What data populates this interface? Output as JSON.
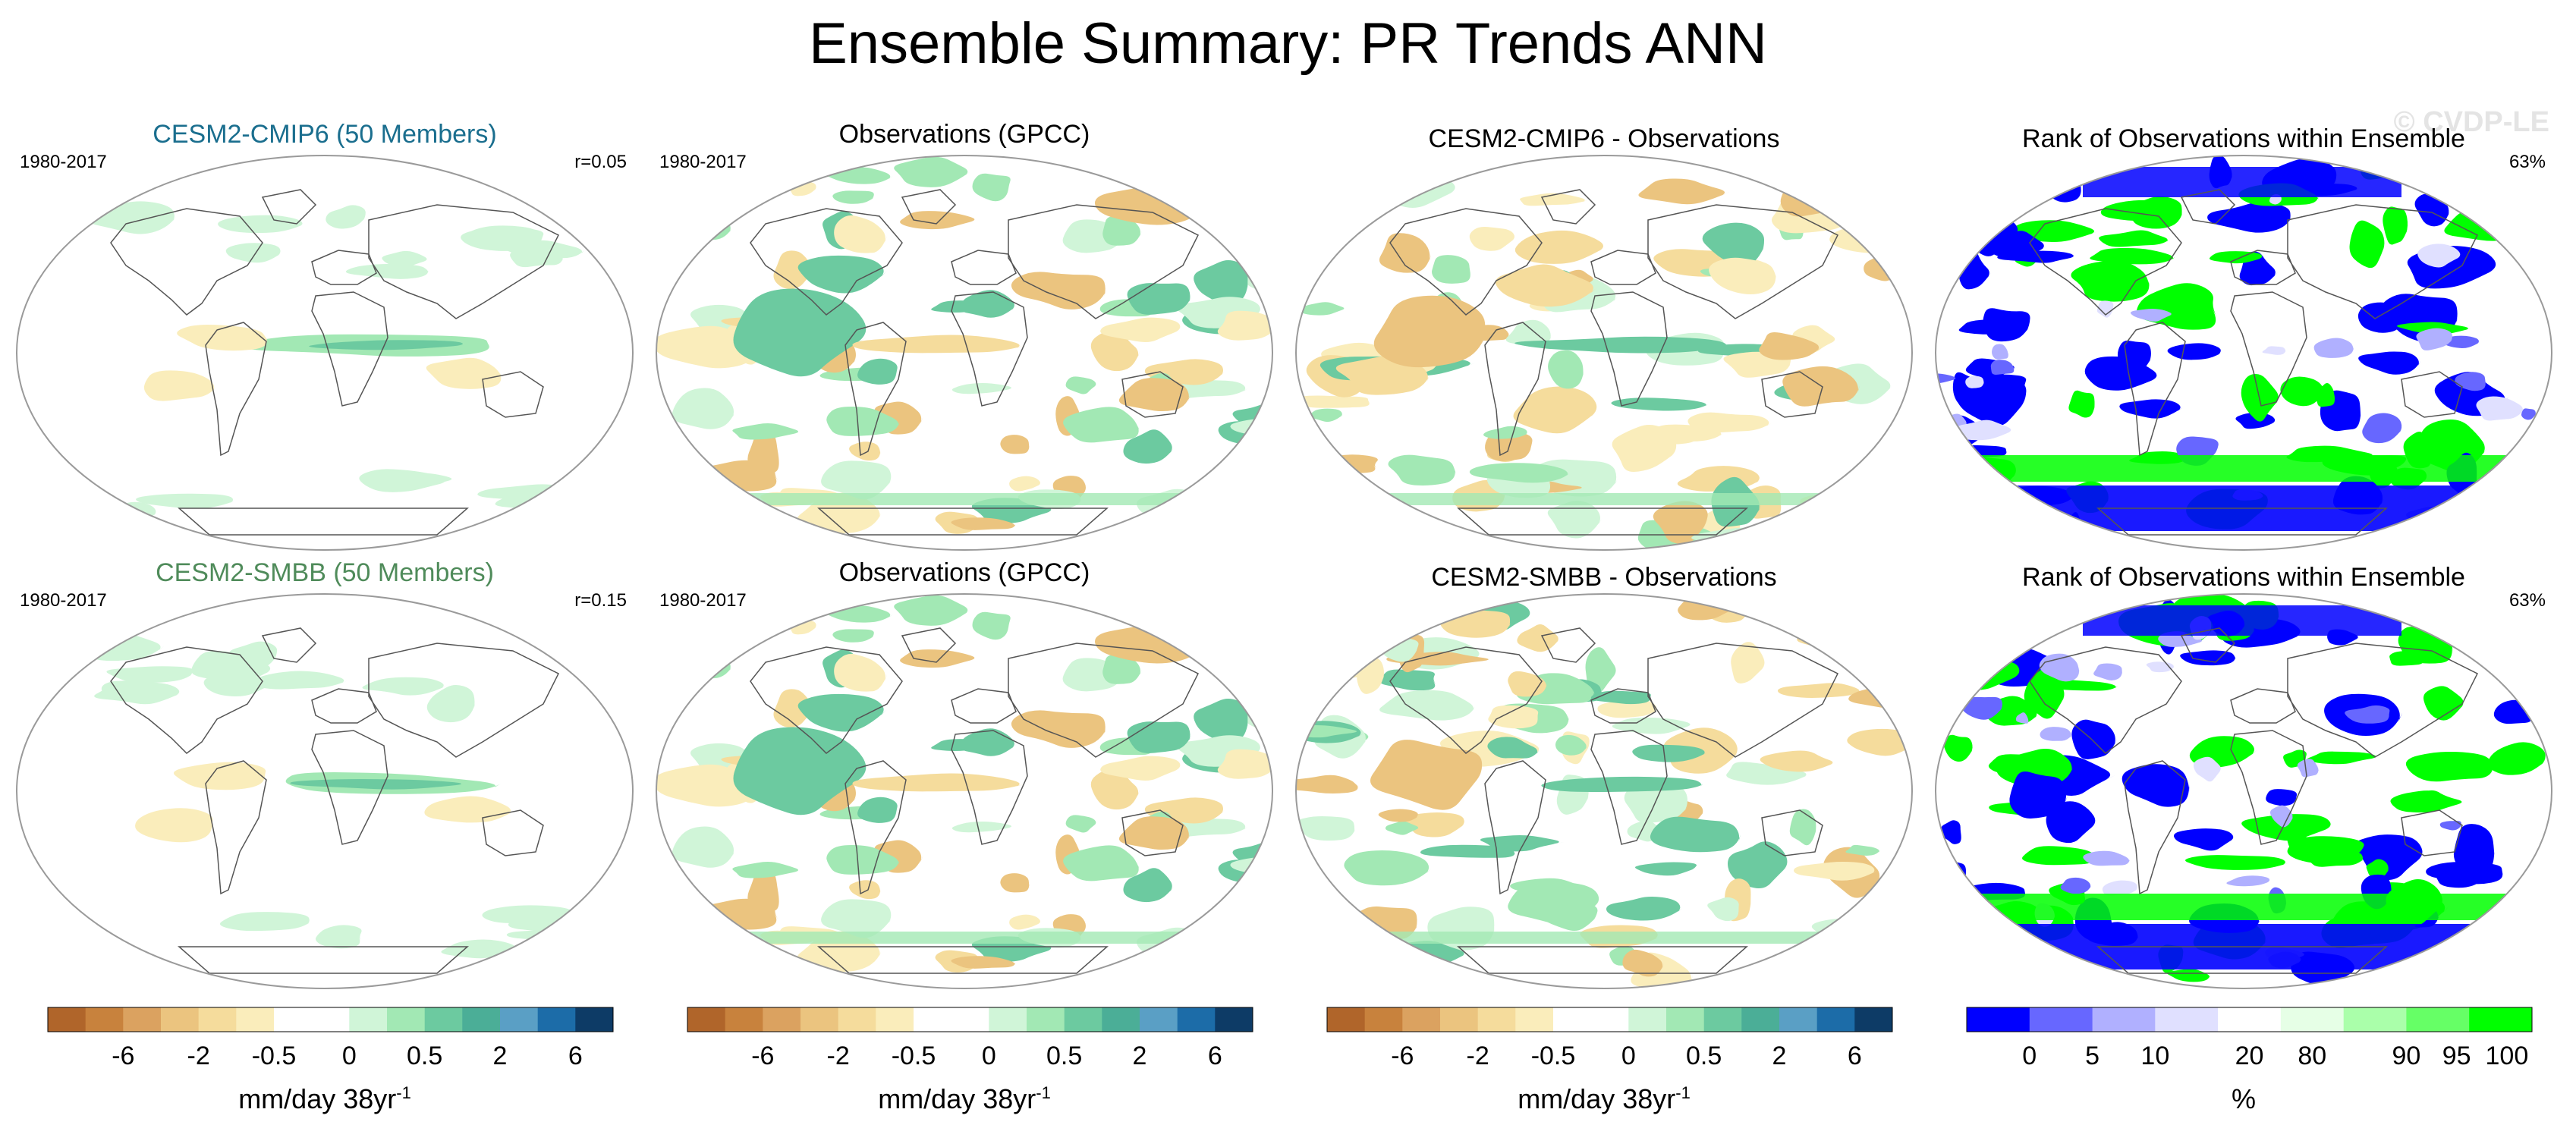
{
  "figure": {
    "title": "Ensemble Summary: PR Trends ANN",
    "watermark": "© CVDP-LE"
  },
  "colors": {
    "trend_scale": [
      "#b0652a",
      "#c8823d",
      "#dba260",
      "#ebc47f",
      "#f5dc9c",
      "#faedbb",
      "#ffffff",
      "#ffffff",
      "#d0f5d8",
      "#a2e8b4",
      "#6ccaa0",
      "#4bae97",
      "#5a9fc5",
      "#1c6ca8",
      "#0d3b66"
    ],
    "rank_scale": [
      "#0000ff",
      "#6767ff",
      "#b0b0ff",
      "#e0e0ff",
      "#ffffff",
      "#e6ffe6",
      "#aaffaa",
      "#66ff66",
      "#00ff00"
    ],
    "title_cmip6": "#1a6e8e",
    "title_smbb": "#4f8b5a",
    "coast": "#555555"
  },
  "chart_data": [
    {
      "type": "heatmap",
      "id": "row1-col1",
      "title": "CESM2-CMIP6 (50 Members)",
      "period": "1980-2017",
      "stat": "r=0.05",
      "projection": "Robinson",
      "variable": "PR trend",
      "units": "mm/day 38yr-1",
      "pattern": "ensemble-mean trend: wetting along equatorial Pacific and northern high latitudes, weak drying in subtropics"
    },
    {
      "type": "heatmap",
      "id": "row1-col2",
      "title": "Observations (GPCC)",
      "period": "1980-2017",
      "projection": "Robinson",
      "variable": "PR trend",
      "units": "mm/day 38yr-1",
      "pattern": "observed trend: wetting over Maritime Continent and western Pacific, drying over central/eastern Pacific"
    },
    {
      "type": "heatmap",
      "id": "row1-col3",
      "title": "CESM2-CMIP6 - Observations",
      "projection": "Robinson",
      "variable": "PR trend difference",
      "units": "mm/day 38yr-1",
      "pattern": "model minus observations: drying over Maritime Continent, wetting along central equatorial Pacific"
    },
    {
      "type": "heatmap",
      "id": "row1-col4",
      "title": "Rank of Observations within Ensemble",
      "stat": "63%",
      "projection": "Robinson",
      "variable": "rank",
      "units": "%",
      "pattern": "blue (low rank) and green (high rank) patches; bands near Southern Ocean"
    },
    {
      "type": "heatmap",
      "id": "row2-col1",
      "title": "CESM2-SMBB (50 Members)",
      "period": "1980-2017",
      "stat": "r=0.15",
      "projection": "Robinson",
      "variable": "PR trend",
      "units": "mm/day 38yr-1",
      "pattern": "ensemble-mean trend: wetting along equatorial Pacific, weak drying in subtropics"
    },
    {
      "type": "heatmap",
      "id": "row2-col2",
      "title": "Observations (GPCC)",
      "period": "1980-2017",
      "projection": "Robinson",
      "variable": "PR trend",
      "units": "mm/day 38yr-1",
      "pattern": "observed trend: same as row 1"
    },
    {
      "type": "heatmap",
      "id": "row2-col3",
      "title": "CESM2-SMBB - Observations",
      "projection": "Robinson",
      "variable": "PR trend difference",
      "units": "mm/day 38yr-1",
      "pattern": "model minus observations"
    },
    {
      "type": "heatmap",
      "id": "row2-col4",
      "title": "Rank of Observations within Ensemble",
      "stat": "63%",
      "projection": "Robinson",
      "variable": "rank",
      "units": "%",
      "pattern": "blue and green patches"
    }
  ],
  "colorbars": {
    "trend": {
      "ticks": [
        "-6",
        "-2",
        "-0.5",
        "0",
        "0.5",
        "2",
        "6"
      ],
      "label": "mm/day 38yr",
      "label_sup": "-1"
    },
    "rank": {
      "ticks": [
        "0",
        "5",
        "10",
        "20",
        "80",
        "90",
        "95",
        "100"
      ],
      "label": "%"
    }
  }
}
